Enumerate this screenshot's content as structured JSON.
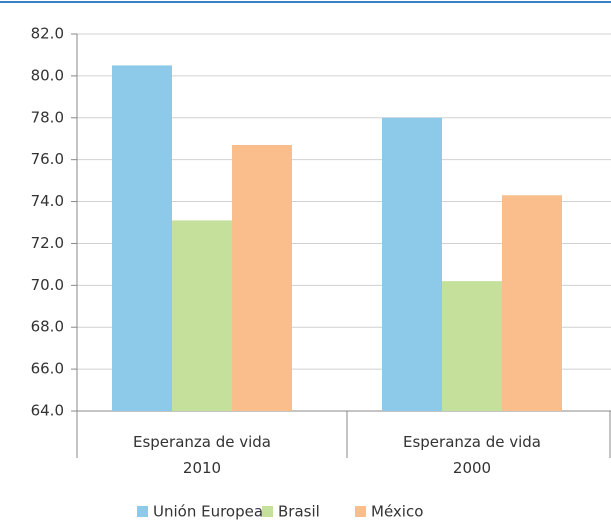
{
  "chart_data": {
    "type": "bar",
    "categories": [
      "Esperanza de vida 2010",
      "Esperanza de vida 2000"
    ],
    "series": [
      {
        "name": "Unión Europea",
        "color": "#8dc9e8",
        "values": [
          80.5,
          78.0
        ]
      },
      {
        "name": "Brasil",
        "color": "#c5e09b",
        "values": [
          73.1,
          70.2
        ]
      },
      {
        "name": "México",
        "color": "#f9be8c",
        "values": [
          76.7,
          74.3
        ]
      }
    ],
    "ylim": [
      64,
      82
    ],
    "yticks": [
      {
        "value": 64,
        "label": "64.0"
      },
      {
        "value": 66,
        "label": "66.0"
      },
      {
        "value": 68,
        "label": "68.0"
      },
      {
        "value": 70,
        "label": "70.0"
      },
      {
        "value": 72,
        "label": "72.0"
      },
      {
        "value": 74,
        "label": "74.0"
      },
      {
        "value": 76,
        "label": "76.0"
      },
      {
        "value": 78,
        "label": "78.0"
      },
      {
        "value": 80,
        "label": "80.0"
      },
      {
        "value": 82,
        "label": "82.0"
      }
    ],
    "grid": true,
    "legend": "bottom"
  }
}
